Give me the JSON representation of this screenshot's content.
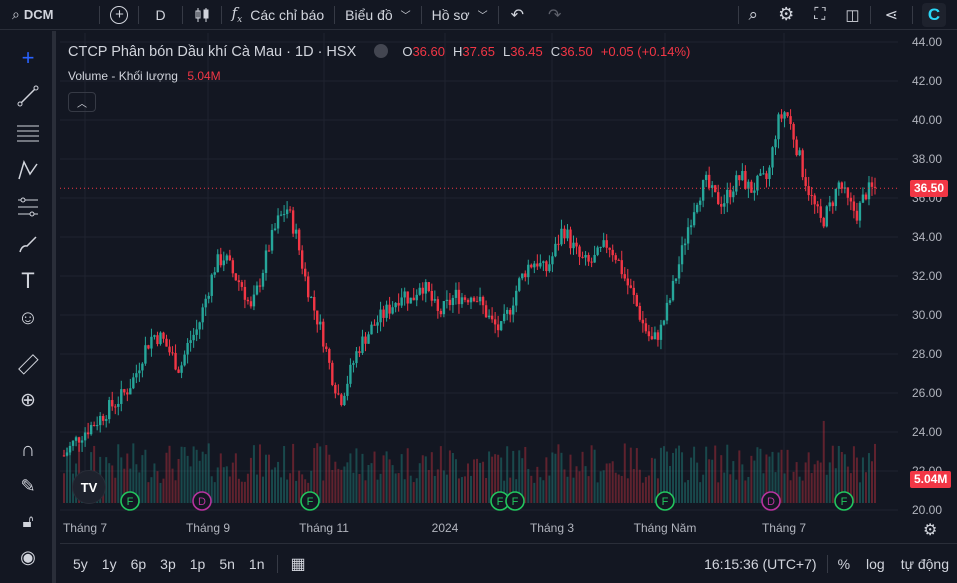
{
  "topbar": {
    "symbol": "DCM",
    "interval": "D",
    "indicators": "Các chỉ báo",
    "chart_menu": "Biểu đồ",
    "profile": "Hồ sơ"
  },
  "legend": {
    "title": "CTCP Phân bón Dầu khí Cà Mau · 1D · HSX",
    "o_label": "O",
    "o_value": "36.60",
    "h_label": "H",
    "h_value": "37.65",
    "l_label": "L",
    "l_value": "36.45",
    "c_label": "C",
    "c_value": "36.50",
    "change": "+0.05 (+0.14%)",
    "volume_label": "Volume - Khối lượng",
    "volume_value": "5.04M"
  },
  "colors": {
    "up": "#26a69a",
    "down": "#f23645",
    "bg": "#131722",
    "grid": "#1f2330"
  },
  "price_axis": [
    "44.00",
    "42.00",
    "40.00",
    "38.00",
    "36.00",
    "34.00",
    "32.00",
    "30.00",
    "28.00",
    "26.00",
    "24.00",
    "22.00",
    "20.00"
  ],
  "price_tag": "36.50",
  "volume_tag": "5.04M",
  "time_axis": [
    "Tháng 7",
    "Tháng 9",
    "Tháng 11",
    "2024",
    "Tháng 3",
    "Tháng Năm",
    "Tháng 7"
  ],
  "events": [
    "F",
    "D",
    "F",
    "F",
    "F",
    "F",
    "D",
    "F"
  ],
  "bottombar": {
    "ranges": [
      "5y",
      "1y",
      "6p",
      "3p",
      "1p",
      "5n",
      "1n"
    ],
    "time": "16:15:36 (UTC+7)",
    "percent": "%",
    "log": "log",
    "auto": "tự động"
  },
  "chart_data": {
    "type": "candlestick",
    "series": [
      {
        "name": "DCM",
        "close": [
          22.8,
          23.4,
          23.9,
          24.3,
          24.7,
          25.2,
          25.6,
          26.1,
          26.9,
          28.2,
          29.0,
          28.8,
          28.0,
          27.2,
          28.6,
          29.3,
          31.0,
          32.6,
          33.0,
          32.1,
          31.5,
          30.2,
          31.8,
          33.5,
          34.8,
          35.5,
          34.2,
          32.0,
          30.4,
          29.0,
          27.0,
          25.6,
          26.9,
          28.3,
          29.0,
          29.6,
          30.1,
          30.6,
          31.2,
          30.7,
          31.7,
          31.0,
          30.0,
          30.5,
          31.0,
          30.9,
          31.1,
          30.4,
          29.6,
          29.2,
          30.3,
          31.6,
          32.5,
          32.8,
          32.2,
          33.2,
          34.5,
          33.6,
          32.8,
          32.6,
          33.1,
          33.7,
          33.0,
          31.8,
          30.8,
          29.5,
          28.6,
          29.3,
          30.8,
          32.6,
          34.5,
          36.0,
          36.8,
          36.0,
          35.8,
          36.6,
          37.1,
          36.4,
          36.8,
          37.0,
          39.8,
          40.5,
          39.0,
          37.2,
          35.8,
          34.7,
          35.6,
          36.8,
          35.7,
          35.2,
          36.3,
          36.5
        ]
      }
    ],
    "ylim": [
      20,
      44
    ]
  }
}
